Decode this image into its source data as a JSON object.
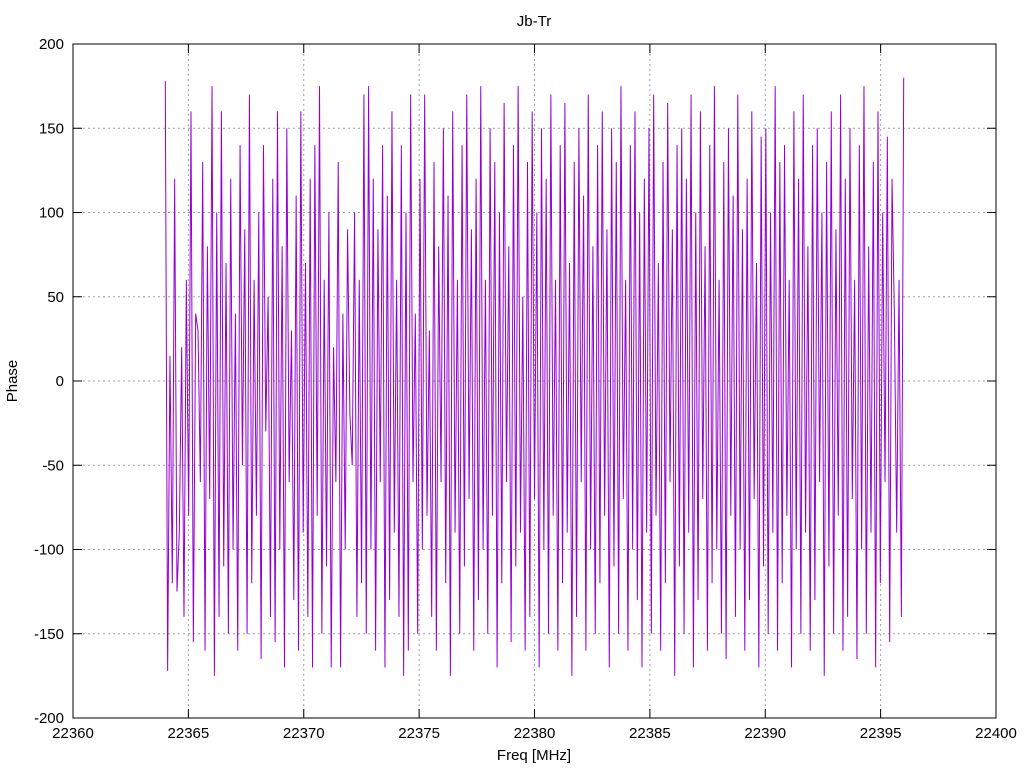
{
  "chart_data": {
    "type": "line",
    "title": "Jb-Tr",
    "xlabel": "Freq [MHz]",
    "ylabel": "Phase",
    "xlim": [
      22360,
      22400
    ],
    "ylim": [
      -200,
      200
    ],
    "xticks": [
      22360,
      22365,
      22370,
      22375,
      22380,
      22385,
      22390,
      22395,
      22400
    ],
    "yticks": [
      -200,
      -150,
      -100,
      -50,
      0,
      50,
      100,
      150,
      200
    ],
    "grid": true,
    "series_color": "#9400d3",
    "series": [
      {
        "x_start": 22364.0,
        "x_end": 22396.0,
        "y": [
          178,
          -172,
          15,
          -120,
          120,
          -125,
          -90,
          20,
          -140,
          60,
          -80,
          160,
          -155,
          40,
          30,
          -60,
          130,
          -160,
          80,
          -70,
          175,
          -175,
          100,
          -140,
          160,
          -110,
          70,
          -150,
          120,
          -100,
          40,
          -160,
          140,
          -50,
          90,
          -150,
          170,
          -120,
          60,
          -80,
          100,
          -165,
          140,
          -30,
          50,
          -140,
          120,
          -155,
          160,
          -100,
          80,
          -170,
          150,
          -60,
          30,
          -130,
          110,
          -160,
          160,
          -90,
          70,
          -140,
          120,
          -170,
          140,
          -80,
          175,
          -150,
          60,
          -110,
          100,
          -170,
          20,
          -60,
          130,
          -170,
          40,
          -100,
          90,
          -20,
          -50,
          100,
          -140,
          60,
          -120,
          170,
          -150,
          175,
          -100,
          120,
          -160,
          90,
          -60,
          140,
          -170,
          110,
          -130,
          160,
          -90,
          60,
          -140,
          140,
          -175,
          100,
          -160,
          170,
          -60,
          40,
          -150,
          120,
          -100,
          170,
          -80,
          30,
          -140,
          130,
          -160,
          80,
          -60,
          150,
          -120,
          110,
          -175,
          160,
          -90,
          60,
          -150,
          140,
          -110,
          170,
          -70,
          90,
          -160,
          120,
          -130,
          175,
          -100,
          60,
          -150,
          150,
          -80,
          130,
          -170,
          100,
          -120,
          165,
          -60,
          80,
          -155,
          140,
          -110,
          175,
          -90,
          50,
          -160,
          130,
          -140,
          160,
          -70,
          100,
          -170,
          150,
          -100,
          120,
          -150,
          170,
          -80,
          60,
          -160,
          140,
          -120,
          165,
          -90,
          70,
          -175,
          130,
          -140,
          150,
          -60,
          110,
          -160,
          170,
          -100,
          80,
          -150,
          140,
          -120,
          160,
          -80,
          90,
          -170,
          150,
          -110,
          130,
          -150,
          175,
          -70,
          60,
          -160,
          140,
          -100,
          160,
          -130,
          100,
          -170,
          120,
          -90,
          150,
          -150,
          170,
          -80,
          70,
          -160,
          130,
          -120,
          165,
          -60,
          90,
          -175,
          140,
          -110,
          150,
          -150,
          120,
          -90,
          170,
          -170,
          100,
          -130,
          160,
          -70,
          80,
          -160,
          140,
          -120,
          175,
          -100,
          60,
          -150,
          130,
          -165,
          150,
          -80,
          110,
          -140,
          170,
          -100,
          90,
          -160,
          120,
          -130,
          160,
          -70,
          70,
          -170,
          145,
          -110,
          150,
          -150,
          100,
          -90,
          175,
          -160,
          130,
          -120,
          140,
          -80,
          60,
          -170,
          160,
          -100,
          120,
          -150,
          170,
          -90,
          80,
          -160,
          140,
          -130,
          150,
          -60,
          100,
          -175,
          130,
          -110,
          160,
          -150,
          90,
          -80,
          170,
          -160,
          120,
          -140,
          150,
          -70,
          60,
          -165,
          140,
          -100,
          175,
          -150,
          80,
          -90,
          130,
          -170,
          160,
          -120,
          100,
          -60,
          145,
          -155,
          120,
          40,
          -90,
          60,
          -140,
          180
        ]
      }
    ]
  }
}
